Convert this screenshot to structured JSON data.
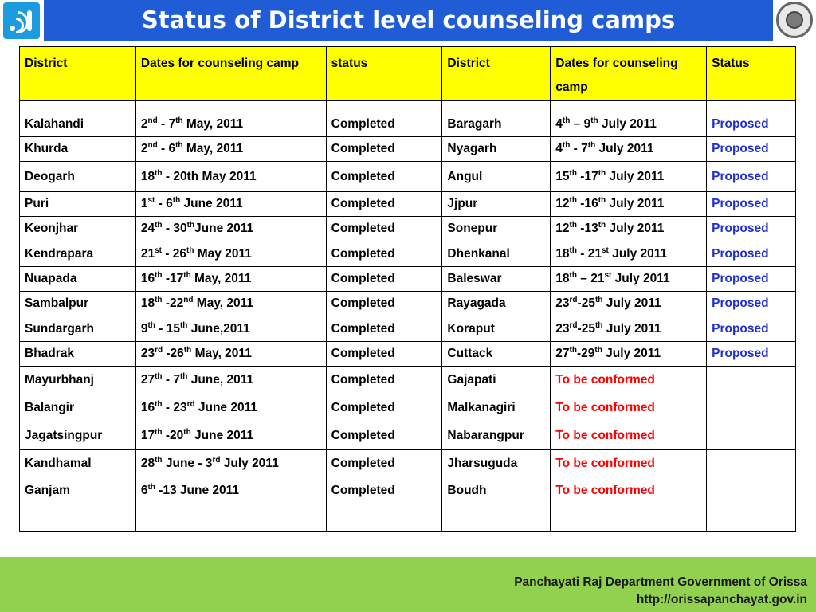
{
  "title": "Status of District level counseling camps",
  "columns": [
    "District",
    "Dates for counseling camp",
    "status",
    "District",
    "Dates for counseling camp",
    "Status"
  ],
  "rows": [
    {
      "d1": "Kalahandi",
      "dt1": "2^nd^ - 7^th^ May, 2011",
      "s1": "Completed",
      "d2": "Baragarh",
      "dt2": "4^th^ – 9^th^ July 2011",
      "s2": "Proposed"
    },
    {
      "d1": "Khurda",
      "dt1": "2^nd^ - 6^th^ May, 2011",
      "s1": "Completed",
      "d2": "Nyagarh",
      "dt2": "4^th^ - 7^th^ July 2011",
      "s2": "Proposed"
    },
    {
      "d1": "Deogarh",
      "dt1": "18^th^ - 20th May 2011",
      "s1": "Completed",
      "d2": "Angul",
      "dt2": "15^th^ -17^th^ July 2011",
      "s2": "Proposed"
    },
    {
      "d1": "Puri",
      "dt1": "1^st^ - 6^th^ June 2011",
      "s1": "Completed",
      "d2": "Jjpur",
      "dt2": "12^th^ -16^th^ July 2011",
      "s2": "Proposed"
    },
    {
      "d1": "Keonjhar",
      "dt1": "24^th^ - 30^th^June 2011",
      "s1": "Completed",
      "d2": "Sonepur",
      "dt2": "12^th^ -13^th^ July 2011",
      "s2": "Proposed"
    },
    {
      "d1": "Kendrapara",
      "dt1": "21^st^ - 26^th^ May 2011",
      "s1": "Completed",
      "d2": "Dhenkanal",
      "dt2": "18^th^ - 21^st^ July 2011",
      "s2": "Proposed"
    },
    {
      "d1": "Nuapada",
      "dt1": "16^th^ -17^th^ May, 2011",
      "s1": "Completed",
      "d2": "Baleswar",
      "dt2": "18^th^ – 21^st^ July 2011",
      "s2": "Proposed"
    },
    {
      "d1": "Sambalpur",
      "dt1": "18^th^ -22^nd^ May, 2011",
      "s1": "Completed",
      "d2": "Rayagada",
      "dt2": "23^rd^-25^th^ July 2011",
      "s2": "Proposed"
    },
    {
      "d1": "Sundargarh",
      "dt1": "9^th^ - 15^th^ June,2011",
      "s1": "Completed",
      "d2": "Koraput",
      "dt2": "23^rd^-25^th^ July 2011",
      "s2": "Proposed"
    },
    {
      "d1": "Bhadrak",
      "dt1": "23^rd^ -26^th^ May, 2011",
      "s1": "Completed",
      "d2": "Cuttack",
      "dt2": "27^th^-29^th^ July 2011",
      "s2": "Proposed"
    },
    {
      "d1": "Mayurbhanj",
      "dt1": "27^th^ - 7^th^ June, 2011",
      "s1": "Completed",
      "d2": "Gajapati",
      "dt2": "To be conformed",
      "s2": ""
    },
    {
      "d1": "Balangir",
      "dt1": "16^th^ - 23^rd^ June 2011",
      "s1": "Completed",
      "d2": "Malkanagiri",
      "dt2": "To be conformed",
      "s2": ""
    },
    {
      "d1": "Jagatsingpur",
      "dt1": "17^th^ -20^th^ June 2011",
      "s1": "Completed",
      "d2": "Nabarangpur",
      "dt2": "To be conformed",
      "s2": ""
    },
    {
      "d1": "Kandhamal",
      "dt1": "28^th^ June - 3^rd^ July 2011",
      "s1": "Completed",
      "d2": "Jharsuguda",
      "dt2": "To be conformed",
      "s2": ""
    },
    {
      "d1": "Ganjam",
      "dt1": "6^th^ -13 June 2011",
      "s1": "Completed",
      "d2": "Boudh",
      "dt2": "To be conformed",
      "s2": ""
    }
  ],
  "footer": {
    "line1": "Panchayati Raj Department  Government of Orissa",
    "line2": "http://orissapanchayat.gov.in"
  },
  "colors": {
    "title_bar": "#1f5cd6",
    "header_fill": "#ffff00",
    "proposed": "#1f2fd1",
    "to_be_conformed": "#ff0000",
    "footer_bg": "#92d050"
  },
  "icons": {
    "left_logo": "info-signal-icon",
    "right_logo": "emblem-icon"
  }
}
